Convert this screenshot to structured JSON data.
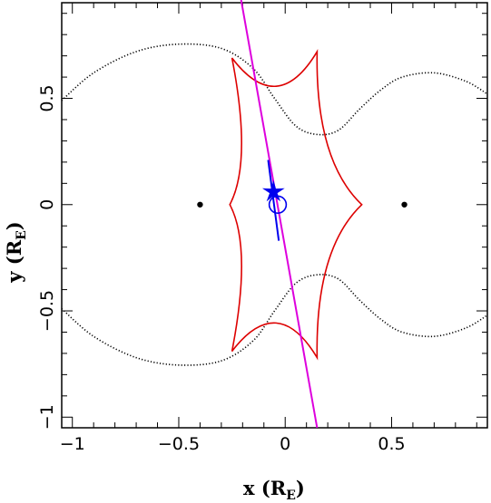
{
  "chart_data": {
    "type": "scatter",
    "title": "",
    "xlabel": "x (R_E)",
    "ylabel": "y (R_E)",
    "axis_labels": {
      "x_main": "x (R",
      "x_sub": "E",
      "x_close": ")",
      "y_main": "y (R",
      "y_sub": "E",
      "y_close": ")"
    },
    "xlim": [
      -1.05,
      0.95
    ],
    "ylim": [
      -1.05,
      0.95
    ],
    "x_ticks": [
      -1,
      -0.5,
      0,
      0.5
    ],
    "x_tick_labels": [
      "−1",
      "−0.5",
      "0",
      "0.5"
    ],
    "y_ticks": [
      -1,
      -0.5,
      0,
      0.5
    ],
    "y_tick_labels": [
      "−1",
      "−0.5",
      "0",
      "0.5"
    ],
    "grid": false,
    "colors": {
      "caustic": "#dd0000",
      "critical_curve": "#000000",
      "trajectory": "#dd00dd",
      "source": "#0000ee",
      "lens": "#000000"
    },
    "lenses": [
      {
        "x": -0.4,
        "y": 0.0
      },
      {
        "x": 0.56,
        "y": 0.0
      }
    ],
    "caustic_cusps": [
      [
        -0.25,
        0.69
      ],
      [
        0.15,
        0.72
      ],
      [
        0.36,
        0.0
      ],
      [
        0.15,
        -0.72
      ],
      [
        -0.25,
        -0.69
      ],
      [
        -0.26,
        0.0
      ]
    ],
    "critical_curve_upper": [
      [
        -1.05,
        0.49
      ],
      [
        -0.9,
        0.62
      ],
      [
        -0.7,
        0.72
      ],
      [
        -0.5,
        0.755
      ],
      [
        -0.3,
        0.735
      ],
      [
        -0.15,
        0.64
      ],
      [
        -0.05,
        0.5
      ],
      [
        0.05,
        0.37
      ],
      [
        0.15,
        0.33
      ],
      [
        0.25,
        0.35
      ],
      [
        0.35,
        0.45
      ],
      [
        0.45,
        0.54
      ],
      [
        0.55,
        0.6
      ],
      [
        0.7,
        0.62
      ],
      [
        0.85,
        0.58
      ],
      [
        0.95,
        0.52
      ]
    ],
    "critical_curve_lower": [
      [
        -1.05,
        -0.49
      ],
      [
        -0.9,
        -0.62
      ],
      [
        -0.7,
        -0.72
      ],
      [
        -0.5,
        -0.755
      ],
      [
        -0.3,
        -0.735
      ],
      [
        -0.15,
        -0.64
      ],
      [
        -0.05,
        -0.5
      ],
      [
        0.05,
        -0.37
      ],
      [
        0.15,
        -0.33
      ],
      [
        0.25,
        -0.35
      ],
      [
        0.35,
        -0.45
      ],
      [
        0.45,
        -0.54
      ],
      [
        0.55,
        -0.6
      ],
      [
        0.7,
        -0.62
      ],
      [
        0.85,
        -0.58
      ],
      [
        0.95,
        -0.52
      ]
    ],
    "trajectory": [
      [
        -0.21,
        0.98
      ],
      [
        0.15,
        -1.05
      ]
    ],
    "source_track": [
      [
        -0.08,
        0.21
      ],
      [
        -0.03,
        -0.17
      ]
    ],
    "source_star": {
      "x": -0.055,
      "y": 0.06
    },
    "source_circle": {
      "x": -0.035,
      "y": 0.0,
      "r": 0.04
    }
  }
}
